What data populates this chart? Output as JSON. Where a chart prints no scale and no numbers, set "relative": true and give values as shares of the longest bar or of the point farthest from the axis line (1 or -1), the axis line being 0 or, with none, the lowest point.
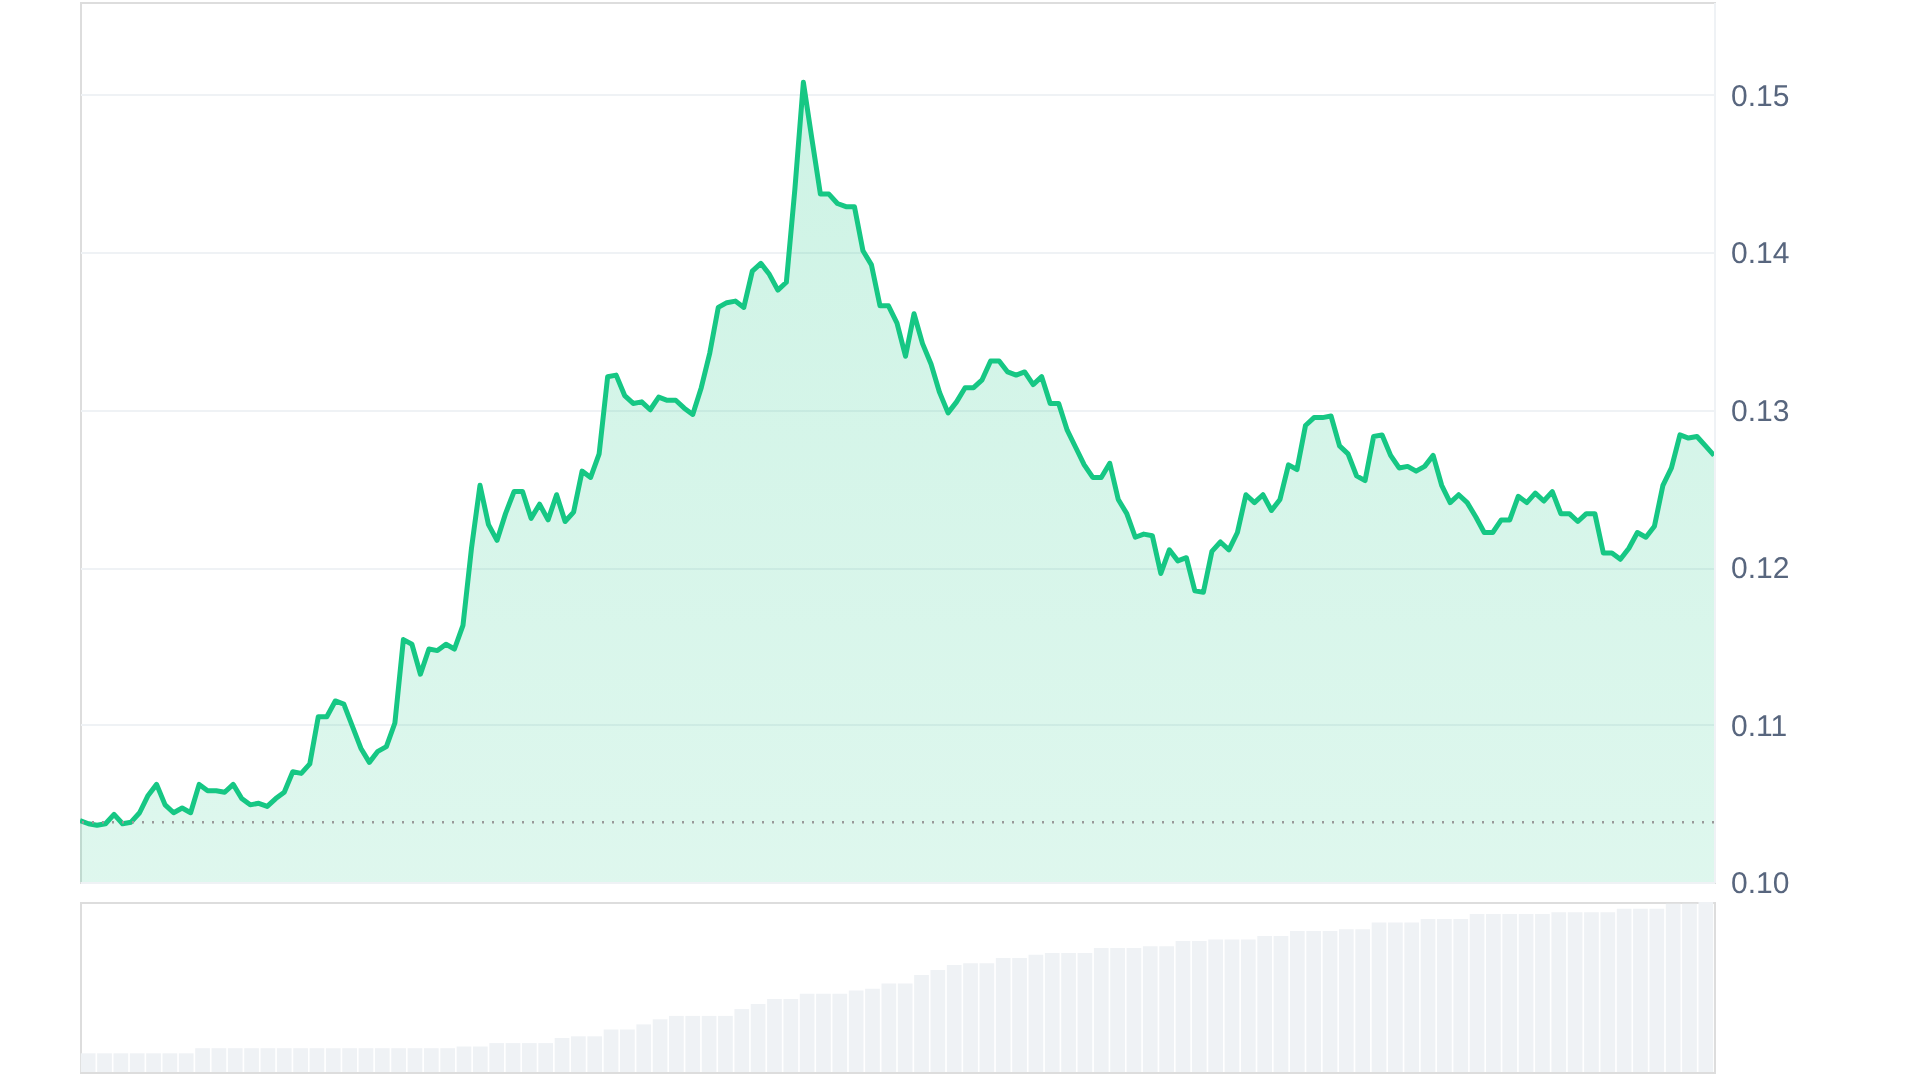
{
  "chart_data": [
    {
      "type": "area",
      "grid": "y",
      "tick_labels": "y",
      "ylim": [
        0.1,
        0.1559
      ],
      "yticks": [
        {
          "value": 0.1,
          "label": "0.10"
        },
        0.11,
        0.12,
        0.13,
        0.14,
        0.15
      ],
      "ref_lines": [
        {
          "axis": "y",
          "value": 0.1038,
          "line_style": "dotted",
          "color": "#999999"
        }
      ],
      "categories": [
        null,
        null,
        null,
        null,
        null,
        null,
        null,
        null,
        null,
        null,
        null,
        null,
        null,
        null,
        null,
        null,
        null,
        null,
        null,
        null,
        null,
        null,
        null,
        null,
        null,
        null,
        null,
        null,
        null,
        null,
        null,
        null,
        null,
        null,
        null,
        null,
        null,
        null,
        null,
        null,
        null,
        null,
        null,
        null,
        null,
        null,
        null,
        null,
        null,
        null,
        null,
        null,
        null,
        null,
        null,
        null,
        null,
        null,
        null,
        null,
        null,
        null,
        null,
        null,
        null,
        null,
        null,
        null,
        null,
        null,
        null,
        null,
        null,
        null,
        null,
        null,
        null,
        null,
        null,
        null,
        null,
        null,
        null,
        null,
        null,
        null,
        null,
        null,
        null,
        null,
        null,
        null,
        null,
        null,
        null,
        null,
        null,
        null,
        null,
        null,
        null,
        null,
        null,
        null,
        null,
        null,
        null,
        null,
        null,
        null,
        null,
        null,
        null,
        null,
        null,
        null,
        null,
        null,
        null,
        null,
        null,
        null,
        null,
        null,
        null,
        null,
        null,
        null,
        null,
        null,
        null,
        null,
        null,
        null,
        null,
        null,
        null,
        null,
        null,
        null,
        null,
        null,
        null,
        null,
        null,
        null,
        null,
        null,
        null,
        null,
        null,
        null,
        null,
        null,
        null,
        null,
        null,
        null,
        null,
        null,
        null,
        null,
        null,
        null,
        null,
        null,
        null,
        null,
        null,
        null,
        null,
        null,
        null,
        null,
        null,
        null,
        null,
        null,
        null,
        null,
        null,
        null,
        null,
        null,
        null,
        null,
        null,
        null,
        null,
        null,
        null,
        null,
        null
      ],
      "series": [
        {
          "color": "#16c784",
          "values": [
            0.1039,
            0.1037,
            0.1036,
            0.1037,
            0.1043,
            0.1037,
            0.1038,
            0.1044,
            0.1055,
            0.1062,
            0.1049,
            0.1044,
            0.1047,
            0.1044,
            0.1062,
            0.1058,
            0.1058,
            0.1057,
            0.1062,
            0.1053,
            0.1049,
            0.105,
            0.1048,
            0.1053,
            0.1057,
            0.107,
            0.1069,
            0.1075,
            0.1105,
            0.1105,
            0.1115,
            0.1113,
            0.1099,
            0.1085,
            0.1076,
            0.1083,
            0.1086,
            0.1101,
            0.1154,
            0.1151,
            0.1132,
            0.1148,
            0.1147,
            0.1151,
            0.1148,
            0.1163,
            0.1212,
            0.1252,
            0.1227,
            0.1217,
            0.1234,
            0.1248,
            0.1248,
            0.1231,
            0.124,
            0.123,
            0.1246,
            0.1229,
            0.1235,
            0.1261,
            0.1257,
            0.1272,
            0.1321,
            0.1322,
            0.1309,
            0.1304,
            0.1305,
            0.13,
            0.1308,
            0.1306,
            0.1306,
            0.1301,
            0.1297,
            0.1314,
            0.1336,
            0.1365,
            0.1368,
            0.1369,
            0.1365,
            0.1388,
            0.1393,
            0.1386,
            0.1376,
            0.1381,
            0.144,
            0.1508,
            0.1472,
            0.1437,
            0.1437,
            0.1431,
            0.1429,
            0.1429,
            0.1401,
            0.1392,
            0.1366,
            0.1366,
            0.1355,
            0.1334,
            0.1361,
            0.1342,
            0.1329,
            0.1311,
            0.1298,
            0.1305,
            0.1314,
            0.1314,
            0.1319,
            0.1331,
            0.1331,
            0.1324,
            0.1322,
            0.1324,
            0.1316,
            0.1321,
            0.1304,
            0.1304,
            0.1287,
            0.1276,
            0.1265,
            0.1257,
            0.1257,
            0.1266,
            0.1243,
            0.1234,
            0.1219,
            0.1221,
            0.122,
            0.1196,
            0.1211,
            0.1204,
            0.1206,
            0.1185,
            0.1184,
            0.121,
            0.1216,
            0.1211,
            0.1222,
            0.1246,
            0.1241,
            0.1246,
            0.1236,
            0.1243,
            0.1265,
            0.1262,
            0.129,
            0.1295,
            0.1295,
            0.1296,
            0.1277,
            0.1272,
            0.1258,
            0.1255,
            0.1283,
            0.1284,
            0.1271,
            0.1263,
            0.1264,
            0.1261,
            0.1264,
            0.1271,
            0.1252,
            0.1241,
            0.1246,
            0.1241,
            0.1232,
            0.1222,
            0.1222,
            0.123,
            0.123,
            0.1245,
            0.1241,
            0.1247,
            0.1242,
            0.1248,
            0.1234,
            0.1234,
            0.1229,
            0.1234,
            0.1234,
            0.1209,
            0.1209,
            0.1205,
            0.1212,
            0.1222,
            0.1219,
            0.1226,
            0.1252,
            0.1263,
            0.1284,
            0.1282,
            0.1283,
            0.1277,
            0.1271
          ]
        }
      ]
    },
    {
      "type": "bar",
      "relative": true,
      "tick_labels": false,
      "categories": [
        null,
        null,
        null,
        null,
        null,
        null,
        null,
        null,
        null,
        null,
        null,
        null,
        null,
        null,
        null,
        null,
        null,
        null,
        null,
        null,
        null,
        null,
        null,
        null,
        null,
        null,
        null,
        null,
        null,
        null,
        null,
        null,
        null,
        null,
        null,
        null,
        null,
        null,
        null,
        null,
        null,
        null,
        null,
        null,
        null,
        null,
        null,
        null,
        null,
        null,
        null,
        null,
        null,
        null,
        null,
        null,
        null,
        null,
        null,
        null,
        null,
        null,
        null,
        null,
        null,
        null,
        null,
        null,
        null,
        null,
        null,
        null,
        null,
        null,
        null,
        null,
        null,
        null,
        null,
        null,
        null,
        null,
        null,
        null,
        null,
        null,
        null,
        null,
        null,
        null,
        null,
        null,
        null,
        null,
        null,
        null,
        null,
        null,
        null,
        null
      ],
      "series": [
        {
          "color": "#eff2f5",
          "values": [
            0.11,
            0.11,
            0.11,
            0.11,
            0.11,
            0.11,
            0.11,
            0.14,
            0.14,
            0.14,
            0.14,
            0.14,
            0.14,
            0.14,
            0.14,
            0.14,
            0.14,
            0.14,
            0.14,
            0.14,
            0.14,
            0.14,
            0.14,
            0.15,
            0.15,
            0.17,
            0.17,
            0.17,
            0.17,
            0.2,
            0.21,
            0.21,
            0.25,
            0.25,
            0.28,
            0.31,
            0.33,
            0.33,
            0.33,
            0.33,
            0.37,
            0.4,
            0.43,
            0.43,
            0.46,
            0.46,
            0.46,
            0.48,
            0.49,
            0.52,
            0.52,
            0.57,
            0.6,
            0.63,
            0.64,
            0.64,
            0.67,
            0.67,
            0.69,
            0.7,
            0.7,
            0.7,
            0.73,
            0.73,
            0.73,
            0.74,
            0.74,
            0.77,
            0.77,
            0.78,
            0.78,
            0.78,
            0.8,
            0.8,
            0.83,
            0.83,
            0.83,
            0.84,
            0.84,
            0.88,
            0.88,
            0.88,
            0.9,
            0.9,
            0.9,
            0.93,
            0.93,
            0.93,
            0.93,
            0.93,
            0.94,
            0.94,
            0.94,
            0.94,
            0.96,
            0.96,
            0.96,
            0.99,
            0.99,
            1
          ]
        }
      ]
    }
  ]
}
